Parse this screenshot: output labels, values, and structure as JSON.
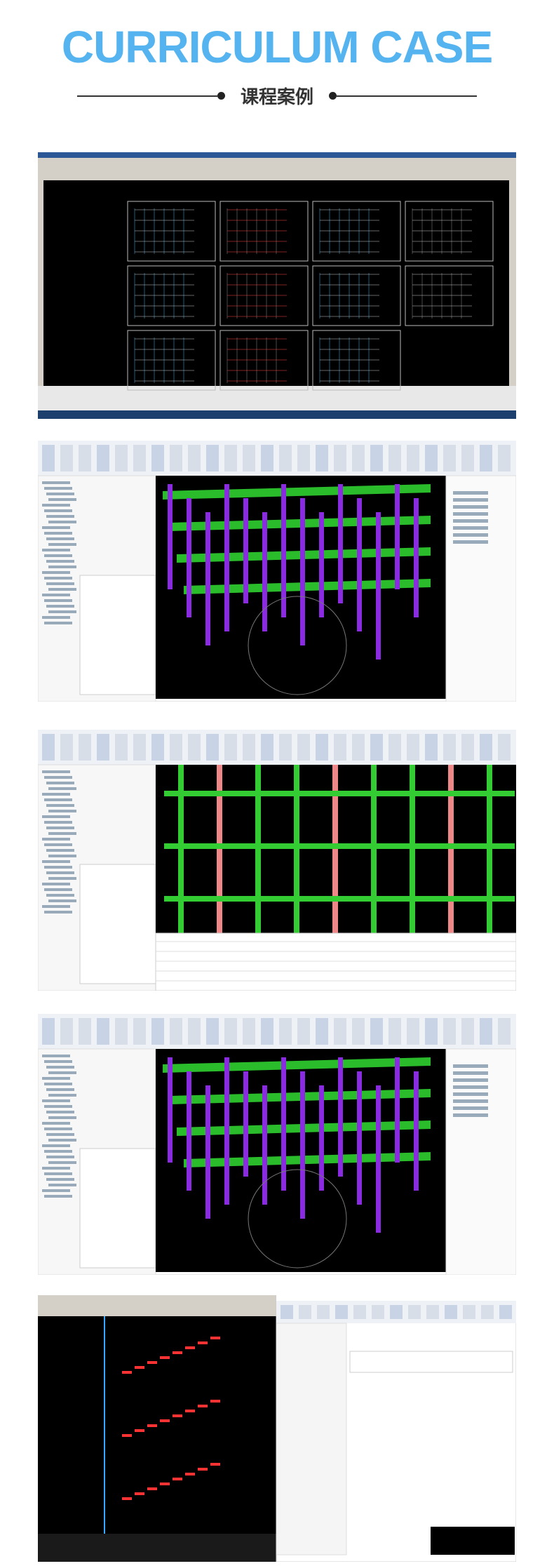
{
  "header": {
    "title": "CURRICULUM CASE",
    "subtitle": "课程案例"
  }
}
